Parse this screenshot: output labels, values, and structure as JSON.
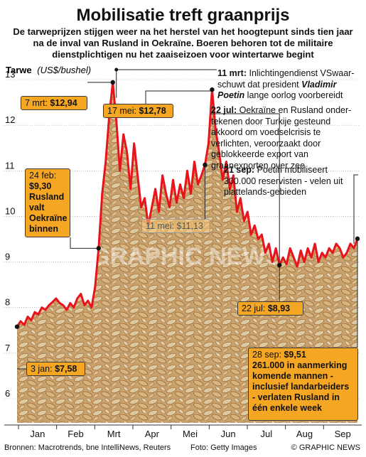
{
  "header": {
    "title": "Mobilisatie treft graanprijs",
    "subtitle": "De tarweprijzen stijgen weer na het herstel van het hoogtepunt sinds tien jaar na de inval van Rusland in Oekraïne. Boeren behoren tot de militaire dienstplichtigen nu het zaaiseizoen voor wintertarwe begint"
  },
  "axis": {
    "label": "Tarwe",
    "unit": "(US$/bushel)"
  },
  "notes": [
    {
      "date": "11 mrt:",
      "text_a": " Inlichtingendienst VSwaar-schuwt dat president ",
      "bold": "Vladimir Poetin",
      "text_b": " lange oorlog voorbereidt"
    },
    {
      "date": "22 jul:",
      "text_a": " Oekraïne en Rusland onder-tekenen door Turkije gesteund akkoord om voedselcrisis te verlichten, veroorzaakt door geblokkeerde export van graanexporten over zee",
      "bold": "",
      "text_b": ""
    },
    {
      "date": "21 sep:",
      "text_a": " Poetin mobiliseert 300.000 reservisten - velen uit plattelands-gebieden",
      "bold": "",
      "text_b": ""
    }
  ],
  "callouts": {
    "mar7_date": "7 mrt: ",
    "mar7_value": "$12,94",
    "may17_date": "17 mei: ",
    "may17_value": "$12,78",
    "feb24_date": "24 feb:",
    "feb24_value": "$9,30",
    "feb24_text": "Rusland valt Oekraïne binnen",
    "may11_date": "11 mei: ",
    "may11_value": "$11,13",
    "jul22_date": "22 jul: ",
    "jul22_value": "$8,93",
    "jan3_date": "3 jan: ",
    "jan3_value": "$7,58",
    "sep28_date": "28 sep: ",
    "sep28_value": "$9,51",
    "sep28_text": "261.000 in aanmerking komende mannen - inclusief landarbeiders - verlaten Rusland in één enkele week"
  },
  "footer": {
    "sources": "Bronnen: Macrotrends, bne IntelliNews, Reuters",
    "photo": "Foto: Getty Images",
    "credit": "© GRAPHIC NEWS"
  },
  "watermark": "GRAPHIC NEWS",
  "colors": {
    "line": "#e8141c",
    "callout": "#f5a623",
    "grain_light": "#e8cfa0",
    "grain_dark": "#b07a3a"
  },
  "chart_data": {
    "type": "line",
    "title": "",
    "xlabel": "",
    "ylabel": "Tarwe (US$/bushel)",
    "ylim": [
      6,
      13
    ],
    "yticks": [
      6,
      7,
      8,
      9,
      10,
      11,
      12,
      13
    ],
    "xticks": [
      "Jan",
      "Feb",
      "Mrt",
      "Apr",
      "Mei",
      "Jun",
      "Jul",
      "Aug",
      "Sep"
    ],
    "series": [
      {
        "values": [
          7.58,
          7.7,
          7.62,
          7.8,
          7.72,
          7.9,
          7.85,
          8.0,
          7.95,
          8.05,
          8.12,
          8.2,
          8.1,
          8.05,
          7.95,
          8.1,
          8.0,
          8.2,
          8.3,
          8.05,
          8.15,
          8.0,
          8.45,
          9.3,
          10.5,
          11.2,
          12.2,
          12.94,
          12.1,
          11.0,
          11.8,
          11.4,
          10.6,
          11.6,
          10.9,
          10.2,
          10.4,
          9.8,
          10.2,
          10.6,
          10.1,
          10.9,
          10.5,
          10.2,
          10.8,
          10.3,
          10.7,
          10.4,
          11.0,
          10.5,
          11.2,
          10.7,
          10.9,
          11.13,
          11.6,
          12.78,
          11.9,
          11.4,
          10.8,
          11.2,
          10.6,
          10.9,
          10.1,
          10.4,
          9.9,
          10.1,
          9.6,
          9.8,
          9.5,
          9.6,
          9.2,
          9.4,
          9.0,
          9.3,
          8.93,
          9.1,
          8.95,
          9.3,
          9.1,
          8.9,
          9.25,
          9.0,
          9.3,
          9.1,
          9.4,
          9.0,
          9.2,
          9.1,
          9.3,
          9.2,
          9.4,
          9.3,
          9.1,
          9.2,
          9.4,
          9.3,
          9.51
        ]
      }
    ],
    "annotations": [
      {
        "label": "3 jan: $7,58",
        "index": 0,
        "value": 7.58
      },
      {
        "label": "24 feb: $9,30",
        "index": 23,
        "value": 9.3
      },
      {
        "label": "7 mrt: $12,94",
        "index": 27,
        "value": 12.94
      },
      {
        "label": "11 mei: $11,13",
        "index": 53,
        "value": 11.13
      },
      {
        "label": "17 mei: $12,78",
        "index": 55,
        "value": 12.78
      },
      {
        "label": "22 jul: $8,93",
        "index": 74,
        "value": 8.93
      },
      {
        "label": "28 sep: $9,51",
        "index": 96,
        "value": 9.51
      }
    ]
  }
}
